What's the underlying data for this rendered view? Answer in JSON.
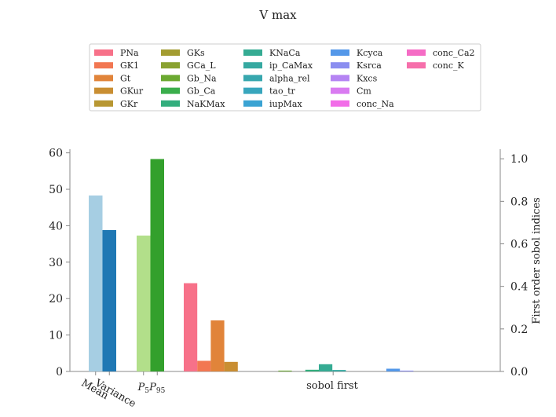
{
  "chart_data": {
    "type": "bar",
    "title": "V max",
    "left_axis": {
      "ylim": [
        0,
        61
      ],
      "ticks": [
        0,
        10,
        20,
        30,
        40,
        50,
        60
      ],
      "ylabel": ""
    },
    "right_axis": {
      "ylim": [
        0,
        1.045
      ],
      "ticks": [
        "0.0",
        "0.2",
        "0.4",
        "0.6",
        "0.8",
        "1.0"
      ],
      "ylabel": "First order sobol indices"
    },
    "groups": [
      {
        "name": "mean_variance",
        "tick_labels": [
          "Mean",
          "Variance"
        ],
        "bars": [
          {
            "label": "Mean",
            "value": 48.3,
            "color": "#a6cee3"
          },
          {
            "label": "Variance",
            "value": 38.8,
            "color": "#1f78b4"
          }
        ]
      },
      {
        "name": "percentiles",
        "tick_labels": [
          "$P_5$",
          "$P_{95}$"
        ],
        "bars": [
          {
            "label": "$P_5$",
            "value": 37.3,
            "color": "#b2df8a"
          },
          {
            "label": "$P_{95}$",
            "value": 58.3,
            "color": "#33a02c"
          }
        ]
      }
    ],
    "sobol": {
      "xlabel": "sobol first",
      "series": [
        {
          "name": "PNa",
          "value": 0.415,
          "color": "#f77189"
        },
        {
          "name": "GK1",
          "value": 0.05,
          "color": "#f27752"
        },
        {
          "name": "Gt",
          "value": 0.24,
          "color": "#e1843a"
        },
        {
          "name": "GKur",
          "value": 0.045,
          "color": "#c98e32"
        },
        {
          "name": "GKr",
          "value": 0.0,
          "color": "#b89732"
        },
        {
          "name": "GKs",
          "value": 0.0,
          "color": "#a39c31"
        },
        {
          "name": "GCa_L",
          "value": 0.0,
          "color": "#8aa231"
        },
        {
          "name": "Gb_Na",
          "value": 0.004,
          "color": "#6ba931"
        },
        {
          "name": "Gb_Ca",
          "value": 0.0,
          "color": "#3aae4c"
        },
        {
          "name": "NaKMax",
          "value": 0.008,
          "color": "#33ae7d"
        },
        {
          "name": "KNaCa",
          "value": 0.034,
          "color": "#35ab93"
        },
        {
          "name": "ip_CaMax",
          "value": 0.007,
          "color": "#36a9a1"
        },
        {
          "name": "alpha_rel",
          "value": 0.0,
          "color": "#37a7ae"
        },
        {
          "name": "tao_tr",
          "value": 0.0,
          "color": "#38a6bd"
        },
        {
          "name": "iupMax",
          "value": 0.0,
          "color": "#3aa3d3"
        },
        {
          "name": "Kcyca",
          "value": 0.013,
          "color": "#5498e9"
        },
        {
          "name": "Ksrca",
          "value": 0.004,
          "color": "#8b8ef0"
        },
        {
          "name": "Kxcs",
          "value": 0.0,
          "color": "#b584f3"
        },
        {
          "name": "Cm",
          "value": 0.0,
          "color": "#d97bf1"
        },
        {
          "name": "conc_Na",
          "value": 0.0,
          "color": "#f26de8"
        },
        {
          "name": "conc_Ca2",
          "value": 0.0,
          "color": "#f56cc5"
        },
        {
          "name": "conc_K",
          "value": 0.0,
          "color": "#f66fab"
        }
      ]
    },
    "legend_placement": "top-center",
    "grid": false
  }
}
